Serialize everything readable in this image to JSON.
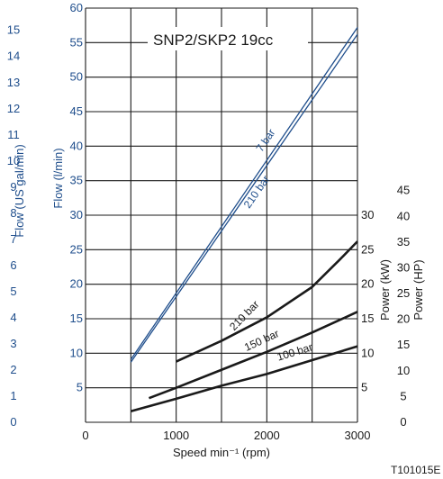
{
  "chart_data": {
    "type": "line",
    "title": "SNP2/SKP2 19cc",
    "figure_code": "T101015E",
    "xlabel": "Speed min⁻¹ (rpm)",
    "xlim": [
      0,
      3000
    ],
    "x_ticks": [
      0,
      1000,
      2000,
      3000
    ],
    "left_axes": [
      {
        "label": "Flow (l/min)",
        "color": "#1f4e8c",
        "ylim": [
          0,
          60
        ],
        "ticks": [
          5,
          10,
          15,
          20,
          25,
          30,
          35,
          40,
          45,
          50,
          55,
          60
        ]
      },
      {
        "label": "Flow (US gal/min)",
        "color": "#1f4e8c",
        "ticks": [
          0,
          1,
          2,
          3,
          4,
          5,
          6,
          7,
          8,
          9,
          10,
          11,
          12,
          13,
          14,
          15
        ]
      }
    ],
    "right_axes": [
      {
        "label": "Power (kW)",
        "color": "#1a1a1a",
        "ticks": [
          5,
          10,
          15,
          20,
          25,
          30
        ]
      },
      {
        "label": "Power (HP)",
        "color": "#1a1a1a",
        "ticks": [
          0,
          5,
          10,
          15,
          20,
          25,
          30,
          35,
          40,
          45
        ]
      }
    ],
    "flow_series": [
      {
        "name": "7 bar",
        "color": "#1f4e8c",
        "x": [
          500,
          3000
        ],
        "y": [
          9.1,
          57.2
        ]
      },
      {
        "name": "210 bar",
        "color": "#1f4e8c",
        "x": [
          500,
          3000
        ],
        "y": [
          8.7,
          56.2
        ]
      }
    ],
    "power_series": [
      {
        "name": "210 bar",
        "color": "#1a1a1a",
        "x": [
          1000,
          1500,
          2000,
          2500,
          2800,
          3000
        ],
        "y": [
          8.8,
          11.8,
          15.2,
          19.6,
          23.5,
          26.2
        ]
      },
      {
        "name": "150 bar",
        "color": "#1a1a1a",
        "x": [
          700,
          1000,
          1500,
          2000,
          2500,
          3000
        ],
        "y": [
          3.5,
          5.0,
          7.6,
          10.2,
          13.0,
          16.0
        ]
      },
      {
        "name": "100 bar",
        "color": "#1a1a1a",
        "x": [
          500,
          1000,
          1500,
          2000,
          2500,
          3000
        ],
        "y": [
          1.6,
          3.4,
          5.3,
          7.0,
          9.0,
          11.0
        ]
      }
    ],
    "grid": true
  }
}
